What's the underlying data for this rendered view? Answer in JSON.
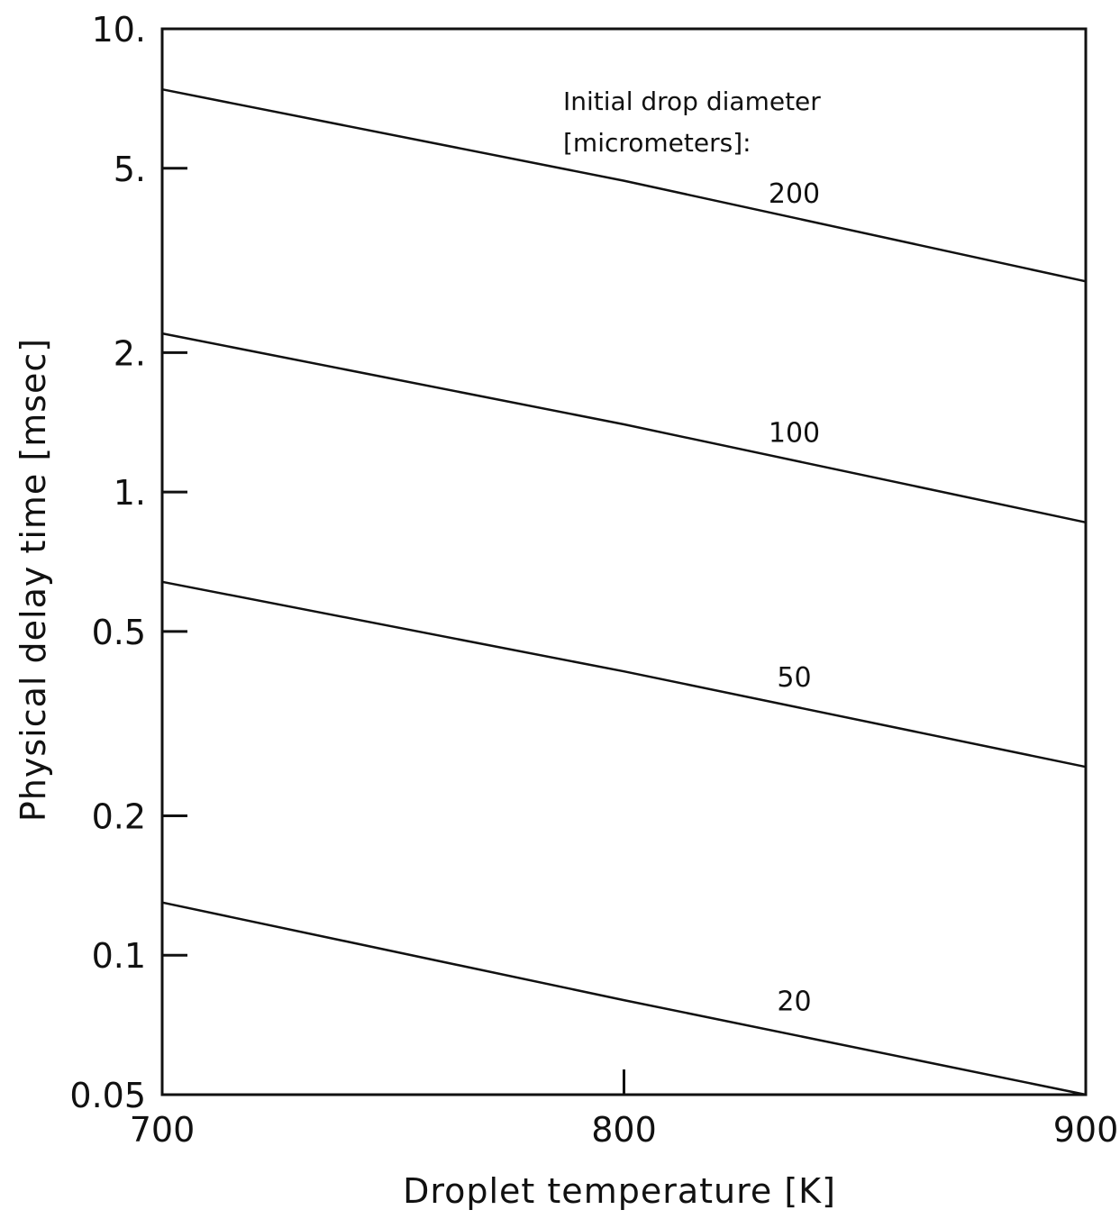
{
  "chart_data": {
    "type": "line",
    "title": "",
    "xlabel": "Droplet temperature [K]",
    "ylabel": "Physical delay time [msec]",
    "xlim": [
      700,
      900
    ],
    "ylim": [
      0.05,
      10
    ],
    "yscale": "log",
    "grid": false,
    "x_ticks": [
      {
        "value": 700,
        "label": "700"
      },
      {
        "value": 800,
        "label": "800"
      },
      {
        "value": 900,
        "label": "900"
      }
    ],
    "y_ticks": [
      {
        "value": 10,
        "label": "10."
      },
      {
        "value": 5,
        "label": "5."
      },
      {
        "value": 2,
        "label": "2."
      },
      {
        "value": 1,
        "label": "1."
      },
      {
        "value": 0.5,
        "label": "0.5"
      },
      {
        "value": 0.2,
        "label": "0.2"
      },
      {
        "value": 0.1,
        "label": "0.1"
      },
      {
        "value": 0.05,
        "label": "0.05"
      }
    ],
    "annotation": [
      "Initial drop diameter",
      "[micrometers]:"
    ],
    "series": [
      {
        "label": "200",
        "x": [
          700,
          800,
          900
        ],
        "y": [
          7.4,
          4.7,
          2.85
        ],
        "label_at": [
          832,
          4.1
        ]
      },
      {
        "label": "100",
        "x": [
          700,
          800,
          900
        ],
        "y": [
          2.2,
          1.4,
          0.86
        ],
        "label_at": [
          832,
          1.25
        ]
      },
      {
        "label": "50",
        "x": [
          700,
          800,
          900
        ],
        "y": [
          0.64,
          0.41,
          0.255
        ],
        "label_at": [
          832,
          0.37
        ]
      },
      {
        "label": "20",
        "x": [
          700,
          800,
          900
        ],
        "y": [
          0.13,
          0.08,
          0.05
        ],
        "label_at": [
          832,
          0.074
        ]
      }
    ]
  }
}
